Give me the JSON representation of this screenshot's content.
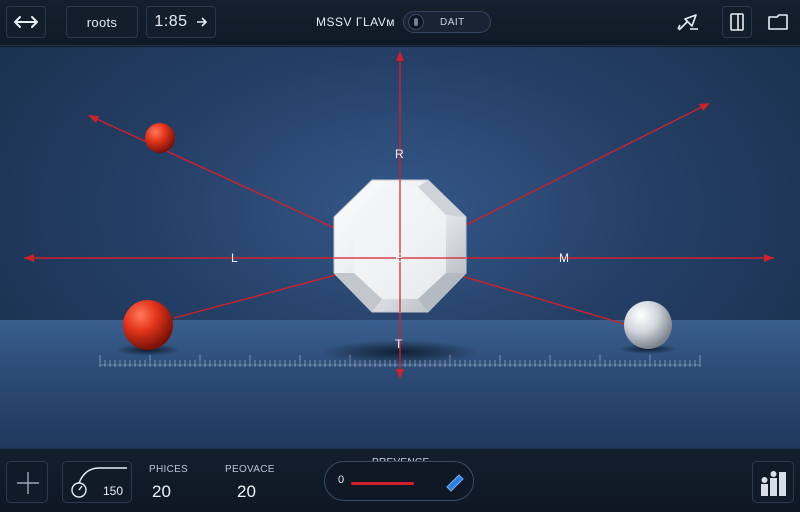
{
  "topbar": {
    "resize_icon": "double-arrow-icon",
    "mode_label": "roots",
    "time": "1:85",
    "time_arrow_icon": "arrow-right-icon",
    "title": "MSSV ΓLAVᴍ",
    "toggle_label": "DAIT",
    "right_icons": [
      "forward-pen-icon",
      "panel-icon",
      "folder-icon"
    ]
  },
  "scene": {
    "labels": {
      "top": "R",
      "left": "L",
      "center": "E",
      "right": "M",
      "bottom": "T"
    }
  },
  "bottombar": {
    "add_icon": "plus-icon",
    "gauge_icon": "gauge-icon",
    "gauge_value": "150",
    "prices_label": "PΗICES",
    "prices_value": "20",
    "province_label": "PEOVACE",
    "province_value": "20",
    "preview_label": "PREVENCE",
    "preview_min": "0",
    "preview_progress": 0.45,
    "chart_icon": "bar-chart-icon",
    "colors": {
      "accent_red": "#d0202a",
      "accent_blue": "#2f7fe0"
    }
  }
}
